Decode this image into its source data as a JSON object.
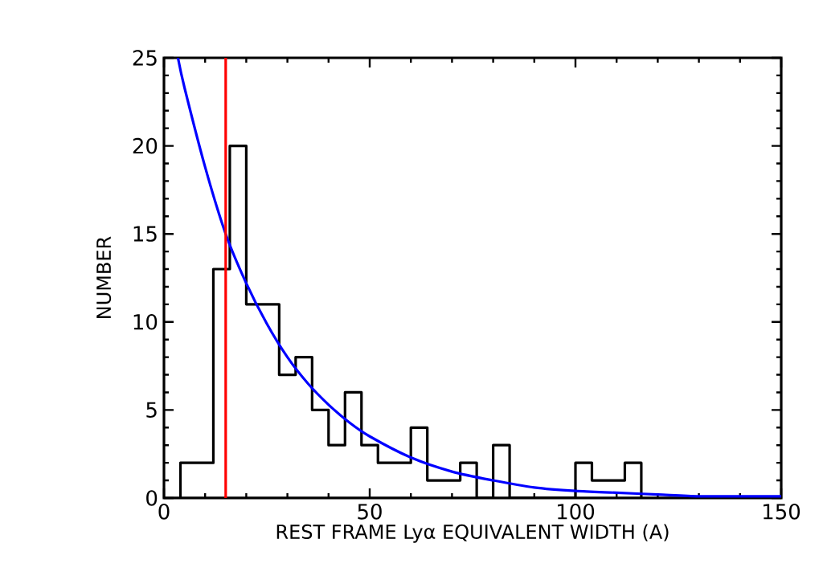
{
  "chart_data": {
    "type": "histogram",
    "xlabel": "REST FRAME Lyα EQUIVALENT WIDTH (A)",
    "ylabel": "NUMBER",
    "bins": [
      4,
      8,
      12,
      16,
      20,
      24,
      28,
      32,
      36,
      40,
      44,
      48,
      52,
      56,
      60,
      64,
      68,
      72,
      76,
      80,
      84,
      88,
      92,
      96,
      100,
      104,
      108,
      112,
      116
    ],
    "values": [
      2,
      2,
      13,
      20,
      11,
      11,
      7,
      8,
      5,
      3,
      6,
      3,
      2,
      2,
      4,
      1,
      1,
      2,
      0,
      3,
      0,
      0,
      0,
      0,
      2,
      1,
      1,
      2
    ],
    "color": "#000000",
    "series": [
      {
        "type": "line",
        "color": "#0000ff",
        "x": [
          3.4,
          5,
          10,
          15,
          20,
          25,
          30,
          35,
          40,
          45,
          50,
          60,
          70,
          80,
          90,
          100,
          110,
          120,
          130,
          140,
          150
        ],
        "values": [
          25,
          23.3,
          18.8,
          15,
          12.2,
          9.9,
          8.0,
          6.5,
          5.3,
          4.3,
          3.5,
          2.3,
          1.5,
          1.0,
          0.6,
          0.4,
          0.3,
          0.2,
          0.1,
          0.1,
          0.1
        ]
      }
    ],
    "ref_lines": [
      {
        "axis": "x",
        "value": 15,
        "color": "#ff0000"
      }
    ],
    "xlim": [
      0,
      150
    ],
    "ylim": [
      0,
      25
    ],
    "xticks": [
      0,
      50,
      100,
      150
    ],
    "yticks": [
      0,
      5,
      10,
      15,
      20,
      25
    ],
    "grid": false
  }
}
